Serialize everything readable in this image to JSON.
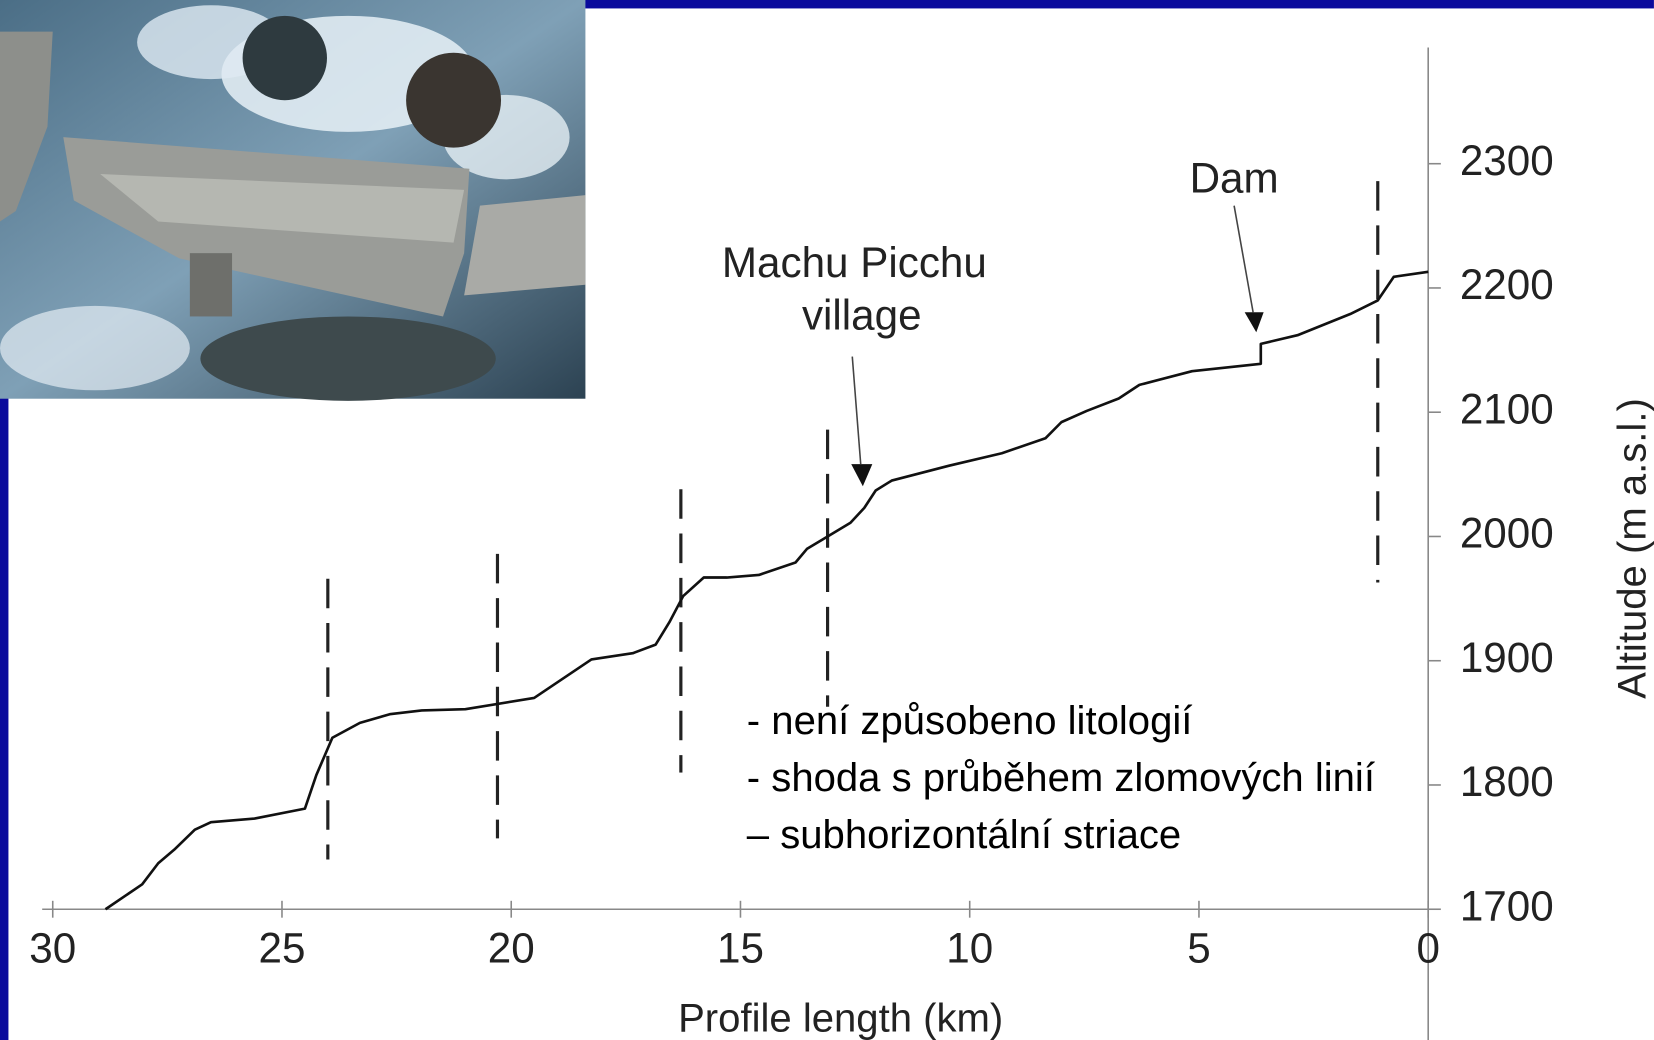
{
  "chart_data": {
    "type": "line",
    "x_label": "Profile length (km)",
    "y_label": "Altitude (m a.s.l.)",
    "color": "#111111",
    "xlim": [
      30,
      0
    ],
    "ylim": [
      1700,
      2380
    ],
    "xticks": [
      30,
      25,
      20,
      15,
      10,
      5,
      0
    ],
    "yticks": [
      1700,
      1800,
      1900,
      2000,
      2100,
      2200,
      2300
    ],
    "x": [
      28.85,
      28.05,
      27.7,
      27.35,
      26.9,
      26.55,
      25.6,
      24.5,
      24.25,
      23.9,
      23.3,
      22.65,
      21.95,
      21.0,
      19.5,
      18.25,
      17.35,
      16.85,
      16.55,
      16.25,
      15.8,
      15.3,
      14.6,
      13.8,
      13.55,
      13.1,
      12.6,
      12.3,
      12.05,
      11.7,
      10.45,
      9.3,
      8.35,
      8.0,
      7.45,
      6.75,
      6.3,
      5.15,
      3.65,
      3.65,
      2.85,
      1.7,
      1.1,
      0.75,
      0
    ],
    "values": [
      1700,
      1720,
      1737,
      1748,
      1764,
      1770,
      1773,
      1781,
      1808,
      1838,
      1850,
      1857,
      1860,
      1861,
      1870,
      1901,
      1906,
      1913,
      1931,
      1952,
      1967,
      1967,
      1969,
      1979,
      1990,
      2000,
      2011,
      2023,
      2037,
      2045,
      2057,
      2067,
      2079,
      2092,
      2101,
      2111,
      2122,
      2133,
      2139,
      2155,
      2162,
      2179,
      2190,
      2209,
      2213
    ],
    "faults": {
      "x": [
        24,
        20.3,
        16.3,
        13.1,
        1.1
      ],
      "top": [
        1966,
        1986,
        2038,
        2086,
        2286
      ],
      "bottom": [
        1740,
        1757,
        1810,
        1863,
        1963
      ]
    },
    "annotations": {
      "dam": "Dam",
      "village": [
        "Machu Picchu",
        "village"
      ]
    },
    "notes": [
      "- není způsobeno litologií",
      "- shoda s průběhem zlomových linií",
      "– subhorizontální striace"
    ]
  }
}
